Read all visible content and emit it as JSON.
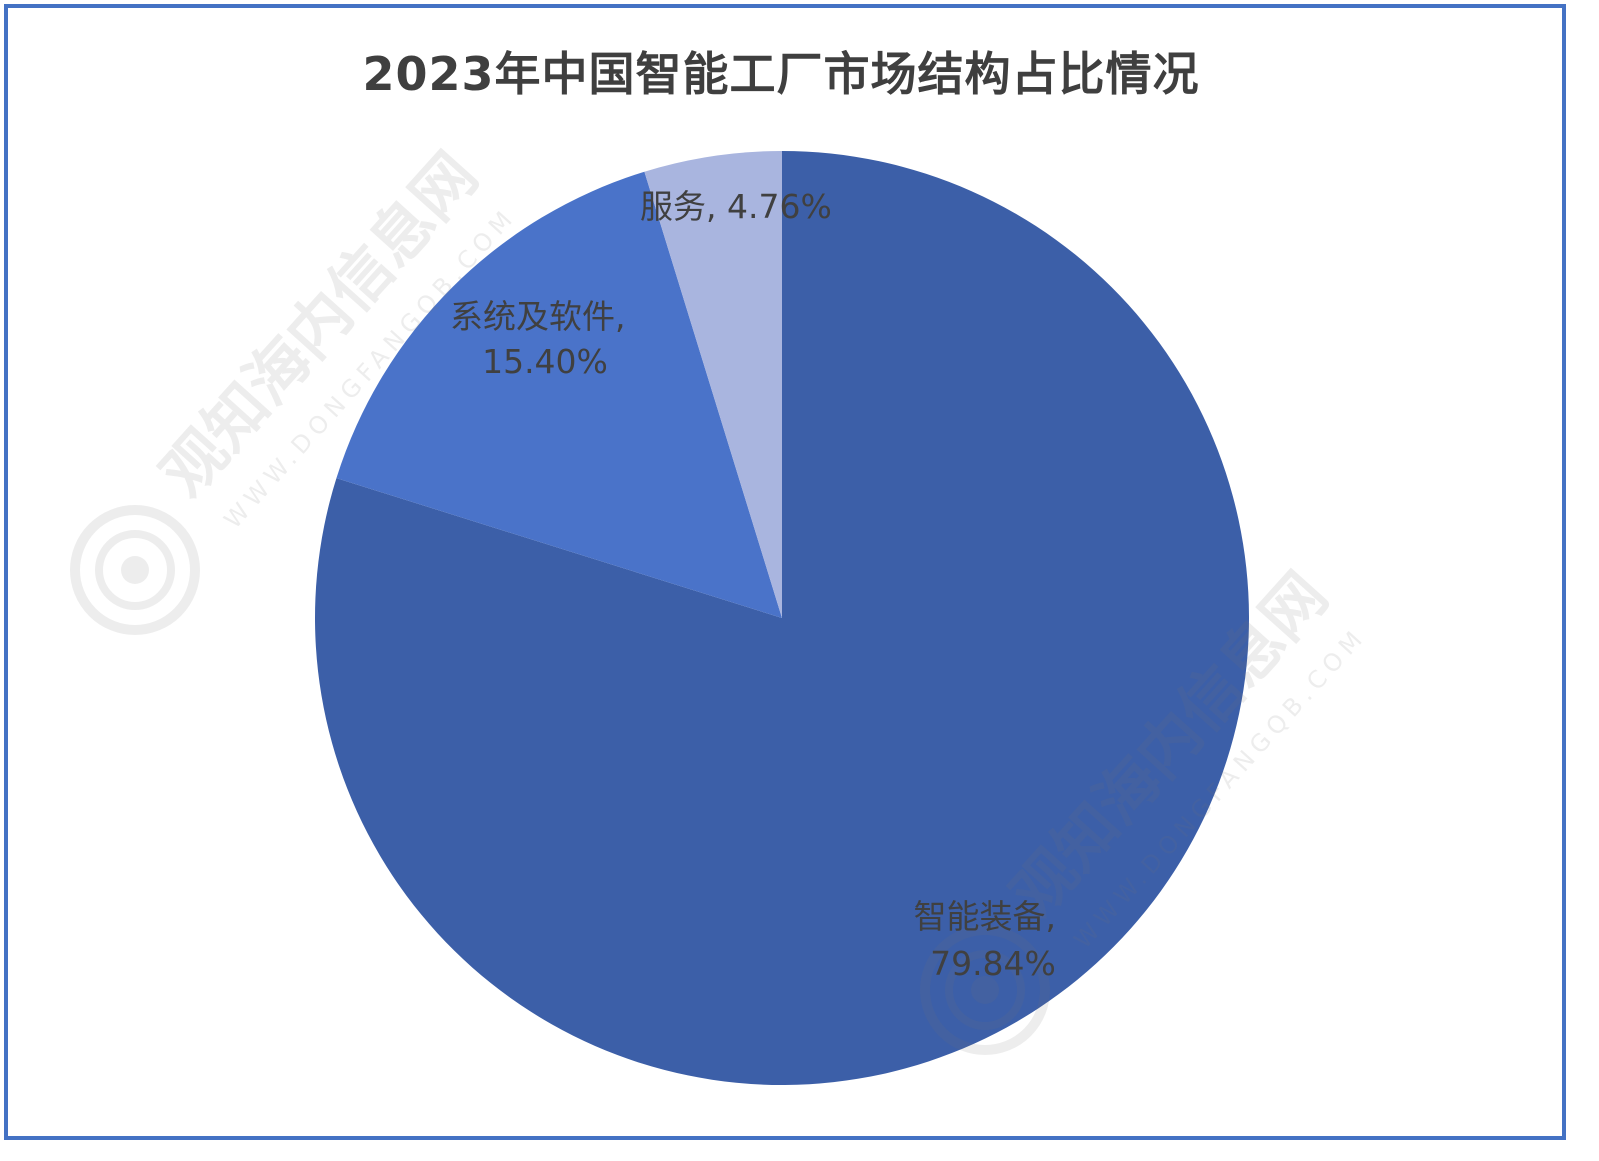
{
  "chart_data": {
    "type": "pie",
    "title": "2023年中国智能工厂市场结构占比情况",
    "slices": [
      {
        "label": "智能装备",
        "value": 79.84,
        "display": "79.84%",
        "color": "#3c5fa8"
      },
      {
        "label": "系统及软件",
        "value": 15.4,
        "display": "15.40%",
        "color": "#4a73c9"
      },
      {
        "label": "服务",
        "value": 4.76,
        "display": "4.76%",
        "color": "#a9b5df"
      }
    ],
    "start_angle_deg": 0,
    "direction": "clockwise"
  },
  "watermark": {
    "text": "观知海内信息网",
    "url": "WWW.DONGFANGQB.COM"
  }
}
